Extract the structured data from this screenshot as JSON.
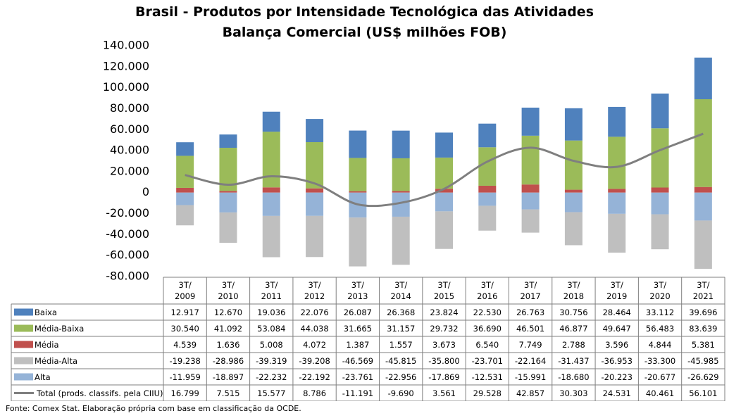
{
  "chart_data": {
    "type": "bar",
    "stacked": true,
    "title": "Brasil - Produtos por Intensidade Tecnológica das Atividades",
    "subtitle": "Balança Comercial (US$ milhões FOB)",
    "categories": [
      {
        "line1": "3T/",
        "line2": "2009"
      },
      {
        "line1": "3T/",
        "line2": "2010"
      },
      {
        "line1": "3T/",
        "line2": "2011"
      },
      {
        "line1": "3T/",
        "line2": "2012"
      },
      {
        "line1": "3T/",
        "line2": "2013"
      },
      {
        "line1": "3T/",
        "line2": "2014"
      },
      {
        "line1": "3T/",
        "line2": "2015"
      },
      {
        "line1": "3T/",
        "line2": "2016"
      },
      {
        "line1": "3T/",
        "line2": "2017"
      },
      {
        "line1": "3T/",
        "line2": "2018"
      },
      {
        "line1": "3T/",
        "line2": "2019"
      },
      {
        "line1": "3T/",
        "line2": "2020"
      },
      {
        "line1": "3T/",
        "line2": "2021"
      }
    ],
    "ylim": [
      -80000,
      140000
    ],
    "y_ticks": [
      140000,
      120000,
      100000,
      80000,
      60000,
      40000,
      20000,
      0,
      -20000,
      -40000,
      -60000,
      -80000
    ],
    "y_tick_labels": [
      "140.000",
      "120.000",
      "100.000",
      "80.000",
      "60.000",
      "40.000",
      "20.000",
      "0",
      "-20.000",
      "-40.000",
      "-60.000",
      "-80.000"
    ],
    "series": [
      {
        "name": "Baixa",
        "kind": "bar",
        "color": "#4f81bd",
        "values": [
          12917,
          12670,
          19036,
          22076,
          26087,
          26368,
          23824,
          22530,
          26763,
          30756,
          28464,
          33112,
          39696
        ],
        "labels": [
          "12.917",
          "12.670",
          "19.036",
          "22.076",
          "26.087",
          "26.368",
          "23.824",
          "22.530",
          "26.763",
          "30.756",
          "28.464",
          "33.112",
          "39.696"
        ]
      },
      {
        "name": "Média-Baixa",
        "kind": "bar",
        "color": "#9bbb59",
        "values": [
          30540,
          41092,
          53084,
          44038,
          31665,
          31157,
          29732,
          36690,
          46501,
          46877,
          49647,
          56483,
          83639
        ],
        "labels": [
          "30.540",
          "41.092",
          "53.084",
          "44.038",
          "31.665",
          "31.157",
          "29.732",
          "36.690",
          "46.501",
          "46.877",
          "49.647",
          "56.483",
          "83.639"
        ]
      },
      {
        "name": "Média",
        "kind": "bar",
        "color": "#c0504d",
        "values": [
          4539,
          1636,
          5008,
          4072,
          1387,
          1557,
          3673,
          6540,
          7749,
          2788,
          3596,
          4844,
          5381
        ],
        "labels": [
          "4.539",
          "1.636",
          "5.008",
          "4.072",
          "1.387",
          "1.557",
          "3.673",
          "6.540",
          "7.749",
          "2.788",
          "3.596",
          "4.844",
          "5.381"
        ]
      },
      {
        "name": "Média-Alta",
        "kind": "bar",
        "color": "#bfbfbf",
        "values": [
          -19238,
          -28986,
          -39319,
          -39208,
          -46569,
          -45815,
          -35800,
          -23701,
          -22164,
          -31437,
          -36953,
          -33300,
          -45985
        ],
        "labels": [
          "-19.238",
          "-28.986",
          "-39.319",
          "-39.208",
          "-46.569",
          "-45.815",
          "-35.800",
          "-23.701",
          "-22.164",
          "-31.437",
          "-36.953",
          "-33.300",
          "-45.985"
        ]
      },
      {
        "name": "Alta",
        "kind": "bar",
        "color": "#95b3d7",
        "values": [
          -11959,
          -18897,
          -22232,
          -22192,
          -23761,
          -22956,
          -17869,
          -12531,
          -15991,
          -18680,
          -20223,
          -20677,
          -26629
        ],
        "labels": [
          "-11.959",
          "-18.897",
          "-22.232",
          "-22.192",
          "-23.761",
          "-22.956",
          "-17.869",
          "-12.531",
          "-15.991",
          "-18.680",
          "-20.223",
          "-20.677",
          "-26.629"
        ]
      },
      {
        "name": "Total (prods. classifs. pela CIIU)",
        "kind": "line",
        "color": "#7f7f7f",
        "values": [
          16799,
          7515,
          15577,
          8786,
          -11191,
          -9690,
          3561,
          29528,
          42857,
          30303,
          24531,
          40461,
          56101
        ],
        "labels": [
          "16.799",
          "7.515",
          "15.577",
          "8.786",
          "-11.191",
          "-9.690",
          "3.561",
          "29.528",
          "42.857",
          "30.303",
          "24.531",
          "40.461",
          "56.101"
        ]
      }
    ],
    "source": "Fonte: Comex Stat. Elaboração própria com base em classificação da OCDE."
  }
}
